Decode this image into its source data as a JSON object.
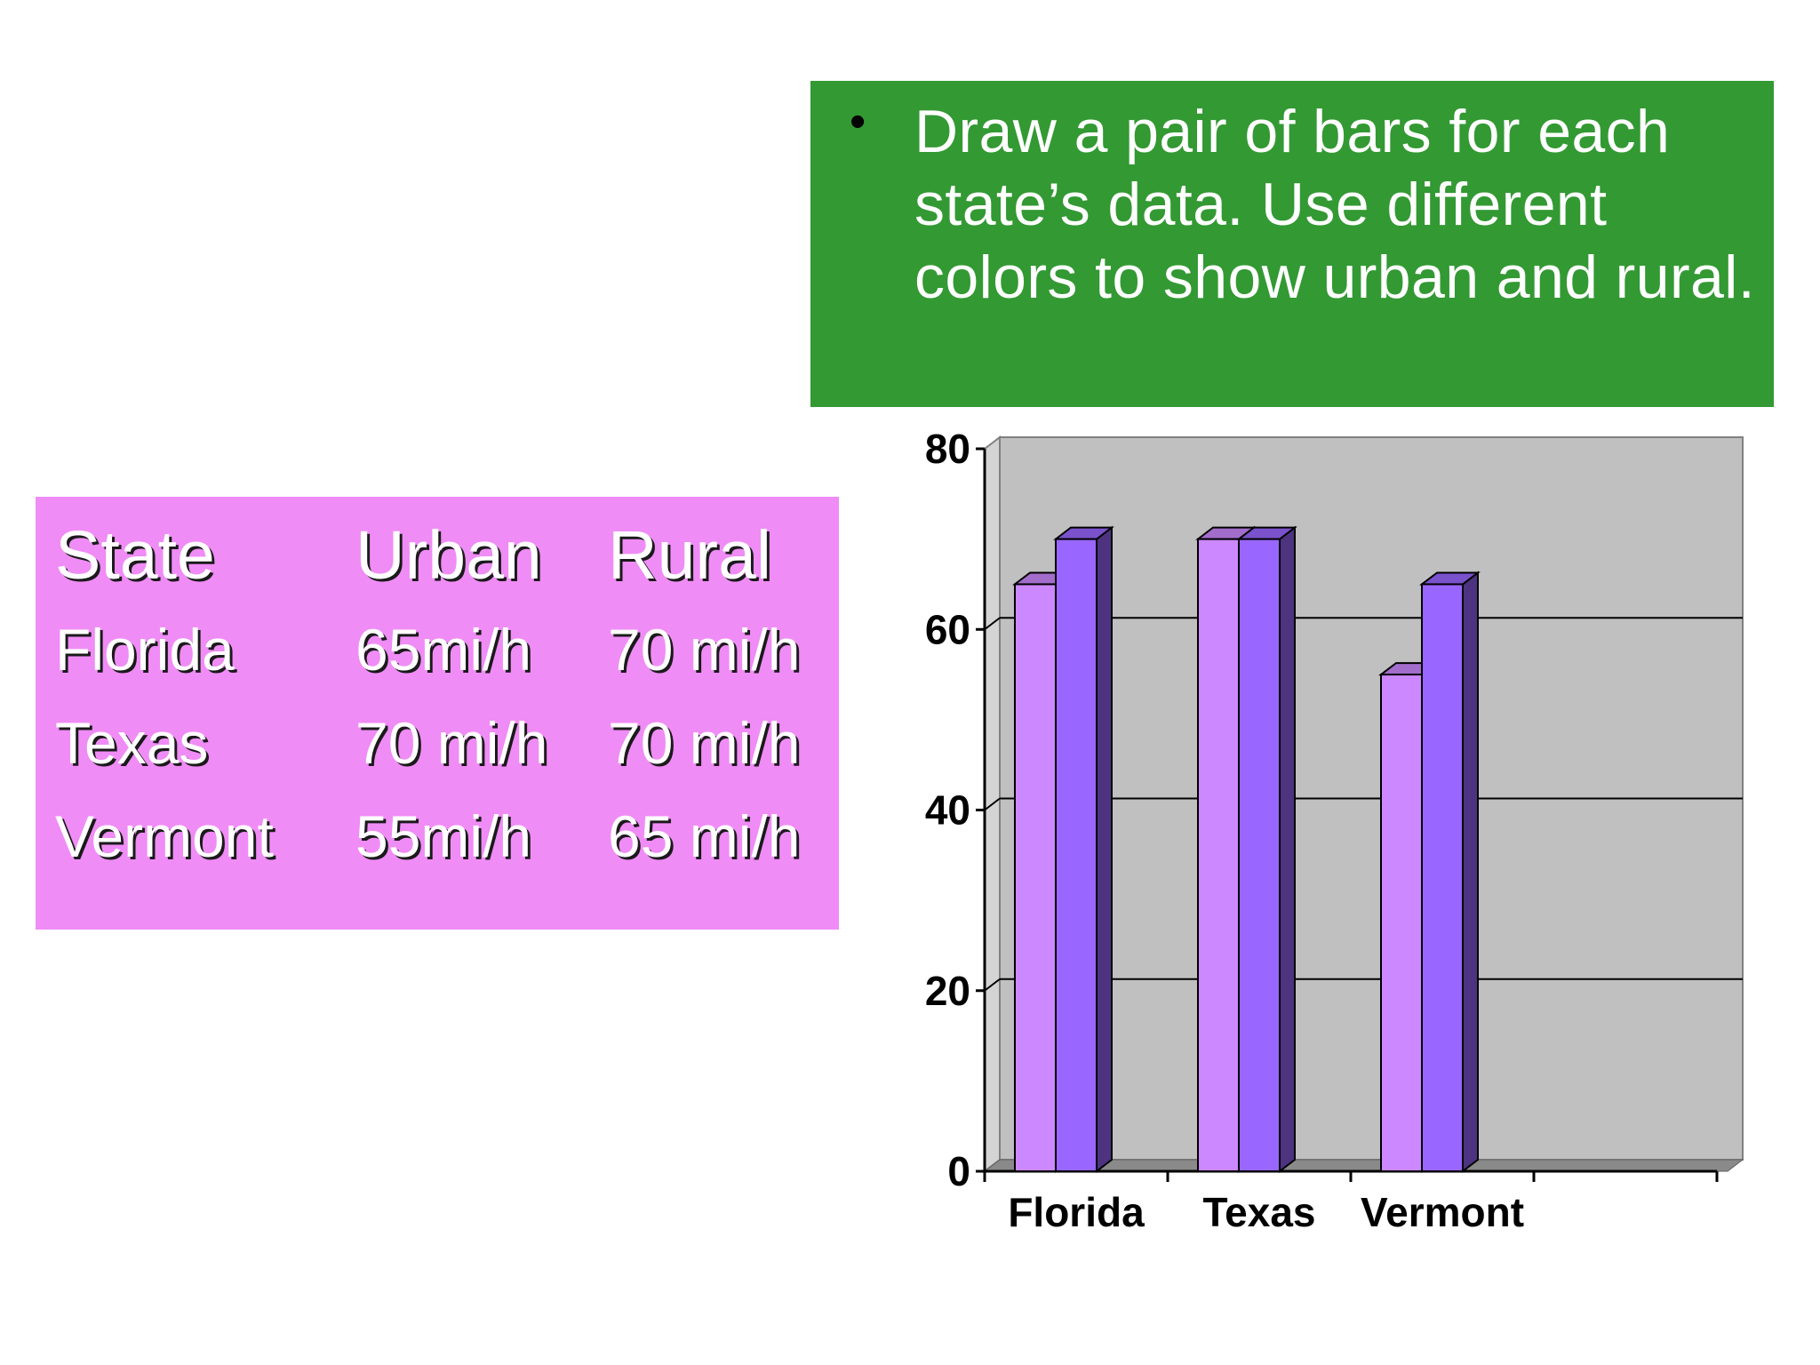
{
  "instruction": {
    "bullet": "•",
    "text": "Draw a pair of bars for each state’s data. Use different colors to show urban and rural."
  },
  "table": {
    "headers": [
      "State",
      "Urban",
      "Rural"
    ],
    "rows": [
      [
        "Florida",
        "65mi/h",
        "70 mi/h"
      ],
      [
        "Texas",
        "70 mi/h",
        "70 mi/h"
      ],
      [
        "Vermont",
        "55mi/h",
        "65 mi/h"
      ]
    ]
  },
  "colors": {
    "instruction_bg": "#339933",
    "table_bg": "#f08cf6",
    "plot_bg": "#c0c0c0",
    "urban_bar": "#cc88ff",
    "rural_bar": "#9966ff"
  },
  "chart_data": {
    "type": "bar",
    "categories": [
      "Florida",
      "Texas",
      "Vermont"
    ],
    "series": [
      {
        "values": [
          65,
          70,
          55
        ],
        "color": "#cc88ff"
      },
      {
        "values": [
          70,
          70,
          65
        ],
        "color": "#9966ff"
      }
    ],
    "ylim": [
      0,
      80
    ],
    "yticks": [
      0,
      20,
      40,
      60,
      80
    ],
    "grid": true,
    "style": "3d-clustered-column"
  }
}
